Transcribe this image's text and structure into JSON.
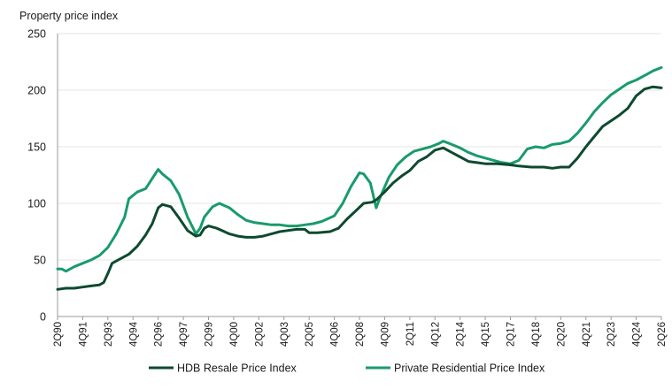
{
  "chart_data": {
    "type": "line",
    "title": "",
    "ylabel": "Property price index",
    "xlabel": "",
    "ylim": [
      0,
      250
    ],
    "yticks": [
      0,
      50,
      100,
      150,
      200,
      250
    ],
    "grid": "horizontal",
    "legend_position": "bottom",
    "x_tick_labels": [
      "2Q90",
      "4Q91",
      "2Q93",
      "4Q94",
      "2Q96",
      "4Q97",
      "2Q99",
      "4Q00",
      "2Q02",
      "4Q03",
      "2Q05",
      "4Q06",
      "2Q08",
      "4Q09",
      "2Q11",
      "4Q12",
      "2Q14",
      "4Q15",
      "2Q17",
      "4Q18",
      "2Q20",
      "4Q21",
      "2Q23",
      "4Q24",
      "2Q26"
    ],
    "x_range": [
      1990.25,
      2026.25
    ],
    "series": [
      {
        "name": "HDB Resale Price Index",
        "color": "#0e4a2f",
        "points": [
          [
            1990.25,
            24
          ],
          [
            1990.75,
            25
          ],
          [
            1991.25,
            25
          ],
          [
            1991.75,
            26
          ],
          [
            1992.25,
            27
          ],
          [
            1992.75,
            28
          ],
          [
            1993.0,
            30
          ],
          [
            1993.25,
            38
          ],
          [
            1993.5,
            47
          ],
          [
            1994.0,
            51
          ],
          [
            1994.5,
            55
          ],
          [
            1995.0,
            62
          ],
          [
            1995.5,
            72
          ],
          [
            1995.9,
            82
          ],
          [
            1996.25,
            96
          ],
          [
            1996.5,
            99
          ],
          [
            1997.0,
            97
          ],
          [
            1997.5,
            87
          ],
          [
            1998.0,
            76
          ],
          [
            1998.5,
            71
          ],
          [
            1998.75,
            72
          ],
          [
            1999.0,
            78
          ],
          [
            1999.25,
            80
          ],
          [
            1999.75,
            78
          ],
          [
            2000.5,
            73
          ],
          [
            2001.0,
            71
          ],
          [
            2001.5,
            70
          ],
          [
            2002.0,
            70
          ],
          [
            2002.5,
            71
          ],
          [
            2003.0,
            73
          ],
          [
            2003.5,
            75
          ],
          [
            2004.0,
            76
          ],
          [
            2004.5,
            77
          ],
          [
            2005.0,
            77
          ],
          [
            2005.25,
            74
          ],
          [
            2005.75,
            74
          ],
          [
            2006.5,
            75
          ],
          [
            2007.0,
            78
          ],
          [
            2007.5,
            86
          ],
          [
            2008.0,
            93
          ],
          [
            2008.5,
            100
          ],
          [
            2009.0,
            101
          ],
          [
            2009.25,
            103
          ],
          [
            2009.75,
            110
          ],
          [
            2010.25,
            118
          ],
          [
            2010.75,
            124
          ],
          [
            2011.25,
            129
          ],
          [
            2011.75,
            137
          ],
          [
            2012.25,
            141
          ],
          [
            2012.75,
            147
          ],
          [
            2013.25,
            149
          ],
          [
            2013.75,
            145
          ],
          [
            2014.25,
            141
          ],
          [
            2014.75,
            137
          ],
          [
            2015.25,
            136
          ],
          [
            2015.75,
            135
          ],
          [
            2016.5,
            135
          ],
          [
            2017.25,
            134
          ],
          [
            2017.75,
            133
          ],
          [
            2018.5,
            132
          ],
          [
            2019.25,
            132
          ],
          [
            2019.75,
            131
          ],
          [
            2020.25,
            132
          ],
          [
            2020.75,
            132
          ],
          [
            2021.25,
            140
          ],
          [
            2021.75,
            150
          ],
          [
            2022.25,
            159
          ],
          [
            2022.75,
            168
          ],
          [
            2023.25,
            173
          ],
          [
            2023.75,
            178
          ],
          [
            2024.25,
            184
          ],
          [
            2024.75,
            195
          ],
          [
            2025.25,
            201
          ],
          [
            2025.75,
            203
          ],
          [
            2026.25,
            202
          ]
        ]
      },
      {
        "name": "Private Residential Price Index",
        "color": "#199b6c",
        "points": [
          [
            1990.25,
            42
          ],
          [
            1990.5,
            42
          ],
          [
            1990.75,
            40
          ],
          [
            1991.25,
            44
          ],
          [
            1991.75,
            47
          ],
          [
            1992.25,
            50
          ],
          [
            1992.75,
            54
          ],
          [
            1993.25,
            61
          ],
          [
            1993.75,
            73
          ],
          [
            1994.25,
            88
          ],
          [
            1994.5,
            104
          ],
          [
            1995.0,
            110
          ],
          [
            1995.5,
            113
          ],
          [
            1995.9,
            122
          ],
          [
            1996.25,
            130
          ],
          [
            1996.5,
            126
          ],
          [
            1997.0,
            120
          ],
          [
            1997.5,
            108
          ],
          [
            1998.0,
            88
          ],
          [
            1998.5,
            73
          ],
          [
            1998.75,
            78
          ],
          [
            1999.0,
            88
          ],
          [
            1999.5,
            97
          ],
          [
            1999.9,
            100
          ],
          [
            2000.5,
            96
          ],
          [
            2001.0,
            90
          ],
          [
            2001.5,
            85
          ],
          [
            2002.0,
            83
          ],
          [
            2002.5,
            82
          ],
          [
            2003.0,
            81
          ],
          [
            2003.5,
            81
          ],
          [
            2004.0,
            80
          ],
          [
            2004.5,
            80
          ],
          [
            2005.0,
            81
          ],
          [
            2005.5,
            82
          ],
          [
            2006.0,
            84
          ],
          [
            2006.75,
            89
          ],
          [
            2007.25,
            100
          ],
          [
            2007.75,
            115
          ],
          [
            2008.25,
            127
          ],
          [
            2008.5,
            126
          ],
          [
            2008.9,
            118
          ],
          [
            2009.25,
            96
          ],
          [
            2009.5,
            106
          ],
          [
            2010.0,
            123
          ],
          [
            2010.5,
            134
          ],
          [
            2011.0,
            141
          ],
          [
            2011.5,
            146
          ],
          [
            2012.0,
            148
          ],
          [
            2012.5,
            150
          ],
          [
            2013.0,
            153
          ],
          [
            2013.25,
            155
          ],
          [
            2013.75,
            152
          ],
          [
            2014.25,
            149
          ],
          [
            2014.75,
            145
          ],
          [
            2015.25,
            142
          ],
          [
            2015.75,
            140
          ],
          [
            2016.25,
            138
          ],
          [
            2016.75,
            136
          ],
          [
            2017.25,
            135
          ],
          [
            2017.75,
            138
          ],
          [
            2018.25,
            148
          ],
          [
            2018.75,
            150
          ],
          [
            2019.25,
            149
          ],
          [
            2019.75,
            152
          ],
          [
            2020.25,
            153
          ],
          [
            2020.75,
            155
          ],
          [
            2021.25,
            162
          ],
          [
            2021.75,
            171
          ],
          [
            2022.25,
            181
          ],
          [
            2022.75,
            189
          ],
          [
            2023.25,
            196
          ],
          [
            2023.75,
            201
          ],
          [
            2024.25,
            206
          ],
          [
            2024.75,
            209
          ],
          [
            2025.25,
            213
          ],
          [
            2025.75,
            217
          ],
          [
            2026.25,
            220
          ]
        ]
      }
    ]
  }
}
